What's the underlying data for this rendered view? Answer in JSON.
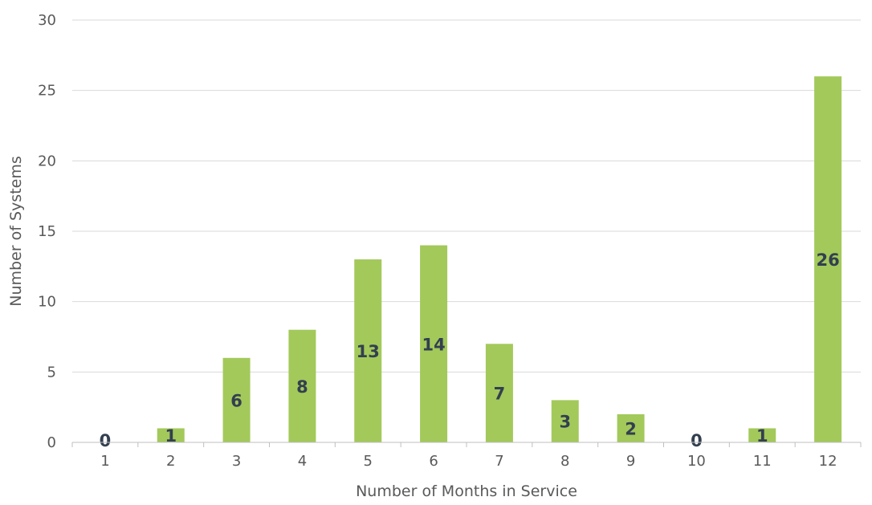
{
  "chart_data": {
    "type": "bar",
    "categories": [
      "1",
      "2",
      "3",
      "4",
      "5",
      "6",
      "7",
      "8",
      "9",
      "10",
      "11",
      "12"
    ],
    "values": [
      0,
      1,
      6,
      8,
      13,
      14,
      7,
      3,
      2,
      0,
      1,
      26
    ],
    "xlabel": "Number of Months in Service",
    "ylabel": "Number of Systems",
    "ylim": [
      0,
      30
    ],
    "yticks": [
      0,
      5,
      10,
      15,
      20,
      25,
      30
    ],
    "grid": true,
    "legend": "none",
    "bar_color": "#a3c95b",
    "label_color": "#333f4f"
  }
}
